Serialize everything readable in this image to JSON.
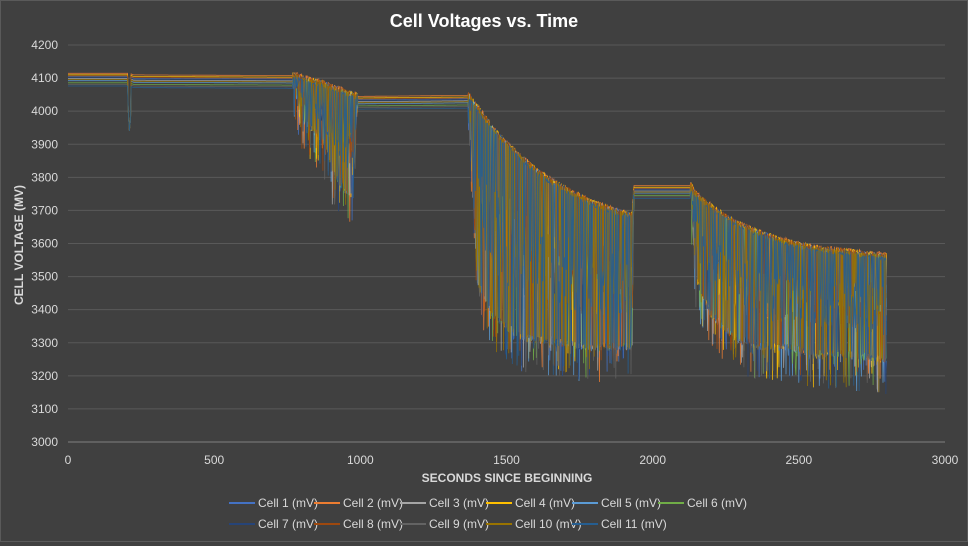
{
  "chart_data": {
    "type": "line",
    "title": "Cell Voltages vs. Time",
    "xlabel": "SECONDS SINCE BEGINNING",
    "ylabel": "CELL VOLTAGE (MV)",
    "xlim": [
      0,
      3000
    ],
    "ylim": [
      3000,
      4200
    ],
    "xticks": [
      0,
      500,
      1000,
      1500,
      2000,
      2500,
      3000
    ],
    "yticks": [
      3000,
      3100,
      3200,
      3300,
      3400,
      3500,
      3600,
      3700,
      3800,
      3900,
      4000,
      4100,
      4200
    ],
    "grid": "horizontal",
    "legend_position": "bottom",
    "envelope": {
      "x": [
        0,
        200,
        210,
        225,
        770,
        800,
        830,
        870,
        900,
        940,
        970,
        990,
        1370,
        1400,
        1450,
        1500,
        1550,
        1600,
        1650,
        1700,
        1750,
        1800,
        1850,
        1900,
        1930,
        1935,
        2130,
        2150,
        2200,
        2250,
        2300,
        2350,
        2400,
        2450,
        2500,
        2550,
        2600,
        2650,
        2700,
        2750,
        2800
      ],
      "top": [
        4125,
        4125,
        4125,
        4120,
        4118,
        4110,
        4100,
        4095,
        4080,
        4070,
        4060,
        4055,
        4058,
        4020,
        3960,
        3910,
        3870,
        3830,
        3800,
        3775,
        3750,
        3730,
        3715,
        3700,
        3695,
        3785,
        3785,
        3755,
        3720,
        3690,
        3665,
        3645,
        3630,
        3615,
        3605,
        3595,
        3590,
        3585,
        3580,
        3575,
        3570
      ],
      "low": [
        4100,
        4100,
        3940,
        4090,
        4090,
        3990,
        3960,
        3930,
        3840,
        3780,
        3760,
        4030,
        4032,
        3500,
        3400,
        3360,
        3330,
        3320,
        3320,
        3310,
        3300,
        3300,
        3300,
        3300,
        3300,
        3765,
        3765,
        3500,
        3400,
        3350,
        3320,
        3310,
        3300,
        3300,
        3290,
        3280,
        3280,
        3280,
        3270,
        3270,
        3260
      ]
    },
    "series": [
      {
        "name": "Cell 1 (mV)",
        "color": "#4472c4",
        "offset": 0
      },
      {
        "name": "Cell 2 (mV)",
        "color": "#ed7d31",
        "offset": 6
      },
      {
        "name": "Cell 3 (mV)",
        "color": "#a5a5a5",
        "offset": -4
      },
      {
        "name": "Cell 4 (mV)",
        "color": "#ffc000",
        "offset": 3
      },
      {
        "name": "Cell 5 (mV)",
        "color": "#5b9bd5",
        "offset": -8
      },
      {
        "name": "Cell 6 (mV)",
        "color": "#70ad47",
        "offset": -12
      },
      {
        "name": "Cell 7 (mV)",
        "color": "#264478",
        "offset": -2
      },
      {
        "name": "Cell 8 (mV)",
        "color": "#9e480e",
        "offset": 1
      },
      {
        "name": "Cell 9 (mV)",
        "color": "#636363",
        "offset": -15
      },
      {
        "name": "Cell 10 (mV)",
        "color": "#997300",
        "offset": -6
      },
      {
        "name": "Cell 11 (mV)",
        "color": "#255e91",
        "offset": -18
      }
    ]
  }
}
